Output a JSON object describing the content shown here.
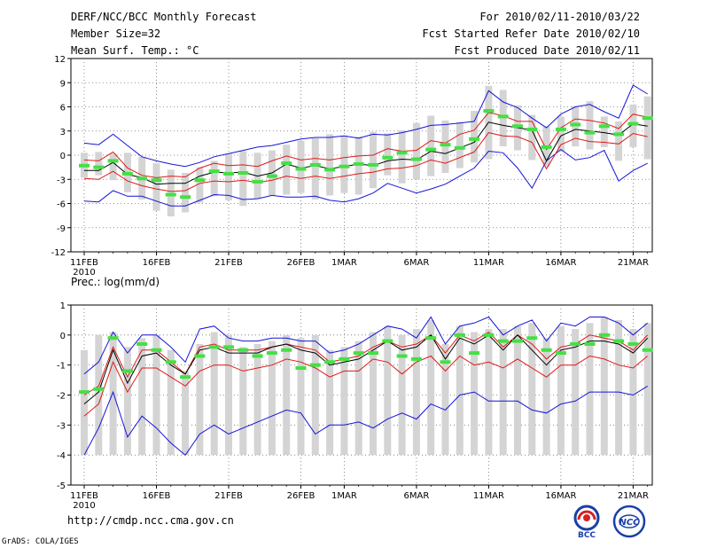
{
  "header": {
    "title": "DERF/NCC/BCC Monthly Forecast",
    "member": "Member Size=32",
    "variable": "Mean Surf. Temp.: °C",
    "range": "For 2010/02/11-2010/03/22",
    "started": "Fcst Started Refer Date 2010/02/10",
    "produced": "Fcst Produced Date 2010/02/11"
  },
  "footer": {
    "url": "http://cmdp.ncc.cma.gov.cn",
    "grads": "GrADS: COLA/IGES",
    "logo_bcc": "BCC",
    "logo_ncc": "NCC"
  },
  "colors": {
    "box": "#d4d4d4",
    "green": "#44e044",
    "black": "#000000",
    "red": "#e01818",
    "blue": "#1414d8",
    "grid": "#707070"
  },
  "chart_data": [
    {
      "type": "box-ensemble",
      "name": "temperature",
      "title": "Mean Surf. Temp.: °C",
      "ylabel": "",
      "ylim": [
        -12,
        12
      ],
      "yticks": [
        -12,
        -9,
        -6,
        -3,
        0,
        3,
        6,
        9,
        12
      ],
      "days": 40,
      "x_tick_labels": [
        {
          "day": 0,
          "label": "11FEB"
        },
        {
          "day": 5,
          "label": "16FEB"
        },
        {
          "day": 10,
          "label": "21FEB"
        },
        {
          "day": 15,
          "label": "26FEB"
        },
        {
          "day": 18,
          "label": "1MAR"
        },
        {
          "day": 23,
          "label": "6MAR"
        },
        {
          "day": 28,
          "label": "11MAR"
        },
        {
          "day": 33,
          "label": "16MAR"
        },
        {
          "day": 38,
          "label": "21MAR"
        }
      ],
      "year_label": "2010",
      "series": [
        {
          "name": "box_low",
          "values": [
            -2.8,
            -2.5,
            -3.1,
            -4.6,
            -5.5,
            -6.9,
            -7.6,
            -7.1,
            -5.9,
            -5.1,
            -5.6,
            -6.3,
            -5.4,
            -5.0,
            -4.9,
            -4.7,
            -5.5,
            -5.0,
            -4.7,
            -4.9,
            -4.1,
            -2.5,
            -3.5,
            -3.0,
            -2.6,
            -2.2,
            -1.6,
            -0.9,
            -0.5,
            1.1,
            0.6,
            -0.6,
            -1.4,
            0.5,
            1.1,
            0.7,
            1.0,
            -0.7,
            1.0,
            -0.5
          ]
        },
        {
          "name": "box_high",
          "values": [
            0.3,
            0.4,
            0.2,
            0.3,
            -0.2,
            -1.0,
            -1.8,
            -2.2,
            -1.5,
            -0.7,
            0.2,
            0.5,
            0.3,
            0.6,
            1.3,
            1.8,
            2.1,
            2.6,
            2.4,
            2.3,
            2.9,
            2.7,
            3.1,
            4.0,
            4.9,
            4.3,
            4.1,
            5.5,
            8.6,
            8.1,
            6.2,
            5.0,
            3.6,
            4.8,
            6.1,
            6.7,
            4.8,
            4.2,
            6.3,
            7.3
          ]
        },
        {
          "name": "ensemble_high",
          "values": [
            1.5,
            1.3,
            2.6,
            1.2,
            -0.2,
            -0.7,
            -1.1,
            -1.4,
            -0.9,
            -0.2,
            0.2,
            0.6,
            1.0,
            1.2,
            1.6,
            2.0,
            2.2,
            2.2,
            2.4,
            2.1,
            2.6,
            2.5,
            2.8,
            3.2,
            3.7,
            3.8,
            4.0,
            4.2,
            8.0,
            6.6,
            5.9,
            4.6,
            3.4,
            5.1,
            6.0,
            6.3,
            5.4,
            4.6,
            8.7,
            7.6
          ]
        },
        {
          "name": "upper",
          "values": [
            -0.6,
            -0.7,
            0.4,
            -1.6,
            -2.5,
            -2.8,
            -2.6,
            -2.7,
            -1.6,
            -1.0,
            -1.3,
            -1.2,
            -1.4,
            -0.7,
            -0.1,
            -0.6,
            -0.4,
            -0.6,
            -0.3,
            -0.1,
            0.0,
            0.8,
            0.5,
            0.6,
            1.8,
            1.5,
            2.6,
            3.1,
            5.3,
            4.9,
            4.2,
            4.2,
            0.7,
            3.4,
            4.5,
            4.3,
            4.0,
            3.3,
            5.1,
            4.7
          ]
        },
        {
          "name": "mean",
          "values": [
            -1.9,
            -1.9,
            -0.9,
            -2.4,
            -2.8,
            -3.6,
            -3.5,
            -3.5,
            -2.6,
            -2.1,
            -2.2,
            -2.1,
            -2.6,
            -2.2,
            -1.1,
            -1.6,
            -1.3,
            -1.7,
            -1.4,
            -1.1,
            -1.3,
            -0.7,
            -0.5,
            -0.6,
            0.5,
            0.2,
            0.9,
            1.6,
            4.1,
            3.7,
            3.4,
            3.1,
            -0.7,
            2.4,
            3.2,
            3.0,
            2.8,
            2.5,
            3.9,
            3.6
          ]
        },
        {
          "name": "lower",
          "values": [
            -2.9,
            -3.0,
            -2.0,
            -3.2,
            -3.8,
            -4.2,
            -4.5,
            -4.4,
            -3.5,
            -3.2,
            -3.3,
            -3.1,
            -3.4,
            -3.1,
            -2.6,
            -2.9,
            -2.6,
            -2.9,
            -2.6,
            -2.3,
            -2.1,
            -1.7,
            -1.6,
            -1.3,
            -0.6,
            -1.0,
            -0.3,
            0.4,
            2.8,
            2.4,
            2.3,
            1.6,
            -1.7,
            1.3,
            2.1,
            1.7,
            1.6,
            1.4,
            2.7,
            2.3
          ]
        },
        {
          "name": "ensemble_low",
          "values": [
            -5.7,
            -5.8,
            -4.4,
            -5.1,
            -5.1,
            -5.7,
            -6.3,
            -6.3,
            -5.6,
            -4.9,
            -5.0,
            -5.5,
            -5.4,
            -5.0,
            -5.2,
            -5.2,
            -5.1,
            -5.6,
            -5.8,
            -5.4,
            -4.7,
            -3.5,
            -4.1,
            -4.7,
            -4.2,
            -3.6,
            -2.6,
            -1.6,
            0.5,
            0.3,
            -1.6,
            -4.1,
            -0.7,
            0.7,
            -0.6,
            -0.3,
            0.6,
            -3.2,
            -1.9,
            -1.0
          ]
        },
        {
          "name": "median",
          "values": [
            -1.3,
            -1.5,
            -0.7,
            -2.3,
            -2.9,
            -3.1,
            -4.9,
            -5.2,
            -3.1,
            -2.0,
            -2.3,
            -2.2,
            -3.3,
            -2.6,
            -1.0,
            -1.7,
            -1.2,
            -1.8,
            -1.4,
            -1.1,
            -1.2,
            -0.3,
            0.3,
            -0.5,
            0.7,
            1.3,
            0.9,
            2.0,
            5.5,
            4.8,
            3.6,
            3.2,
            1.0,
            3.2,
            3.8,
            2.8,
            3.6,
            2.6,
            3.9,
            4.6
          ]
        }
      ]
    },
    {
      "type": "box-ensemble",
      "name": "precipitation",
      "title": "Prec.: log(mm/d)",
      "ylabel": "",
      "ylim": [
        -5,
        1
      ],
      "yticks": [
        -5,
        -4,
        -3,
        -2,
        -1,
        0,
        1
      ],
      "days": 40,
      "x_tick_labels": [
        {
          "day": 0,
          "label": "11FEB"
        },
        {
          "day": 5,
          "label": "16FEB"
        },
        {
          "day": 10,
          "label": "21FEB"
        },
        {
          "day": 15,
          "label": "26FEB"
        },
        {
          "day": 18,
          "label": "1MAR"
        },
        {
          "day": 23,
          "label": "6MAR"
        },
        {
          "day": 28,
          "label": "11MAR"
        },
        {
          "day": 33,
          "label": "16MAR"
        },
        {
          "day": 38,
          "label": "21MAR"
        }
      ],
      "year_label": "2010",
      "series": [
        {
          "name": "box_low",
          "values": [
            -4.0,
            -4.0,
            -4.0,
            -4.0,
            -4.0,
            -4.0,
            -4.0,
            -4.0,
            -4.0,
            -4.0,
            -4.0,
            -4.0,
            -4.0,
            -4.0,
            -4.0,
            -4.0,
            -4.0,
            -4.0,
            -4.0,
            -4.0,
            -4.0,
            -4.0,
            -4.0,
            -4.0,
            -4.0,
            -4.0,
            -4.0,
            -4.0,
            -4.0,
            -4.0,
            -4.0,
            -4.0,
            -4.0,
            -4.0,
            -4.0,
            -4.0,
            -4.0,
            -4.0,
            -4.0,
            -4.0
          ]
        },
        {
          "name": "box_high",
          "values": [
            -0.5,
            0.0,
            0.1,
            -0.4,
            -0.1,
            0.0,
            -0.5,
            -1.2,
            -0.3,
            0.1,
            0.0,
            -0.4,
            -0.3,
            -0.2,
            0.0,
            -0.1,
            0.0,
            -0.5,
            -0.4,
            -0.2,
            0.1,
            0.3,
            0.0,
            0.2,
            0.5,
            -0.3,
            0.3,
            0.1,
            0.2,
            0.2,
            0.3,
            0.4,
            -0.1,
            0.3,
            0.2,
            0.4,
            0.6,
            0.5,
            0.2,
            0.4
          ]
        },
        {
          "name": "ensemble_high",
          "values": [
            -1.3,
            -0.9,
            0.1,
            -0.6,
            0.0,
            0.0,
            -0.4,
            -0.9,
            0.2,
            0.3,
            -0.1,
            -0.2,
            -0.2,
            -0.1,
            -0.1,
            -0.2,
            -0.2,
            -0.6,
            -0.5,
            -0.3,
            0.0,
            0.3,
            0.2,
            -0.1,
            0.6,
            -0.3,
            0.3,
            0.4,
            0.6,
            0.0,
            0.3,
            0.5,
            -0.2,
            0.4,
            0.3,
            0.6,
            0.6,
            0.4,
            0.0,
            0.4
          ]
        },
        {
          "name": "upper",
          "values": [
            -2.0,
            -1.7,
            -0.4,
            -1.4,
            -0.5,
            -0.5,
            -0.9,
            -1.3,
            -0.4,
            -0.3,
            -0.5,
            -0.5,
            -0.5,
            -0.4,
            -0.3,
            -0.4,
            -0.5,
            -0.9,
            -0.8,
            -0.7,
            -0.4,
            -0.2,
            -0.4,
            -0.3,
            0.0,
            -0.6,
            0.0,
            -0.2,
            0.1,
            -0.4,
            0.0,
            -0.3,
            -0.8,
            -0.4,
            -0.3,
            0.0,
            -0.1,
            -0.2,
            -0.5,
            0.0
          ]
        },
        {
          "name": "mean",
          "values": [
            -2.3,
            -1.9,
            -0.5,
            -1.6,
            -0.7,
            -0.6,
            -1.0,
            -1.3,
            -0.5,
            -0.4,
            -0.6,
            -0.6,
            -0.6,
            -0.4,
            -0.3,
            -0.5,
            -0.6,
            -1.0,
            -0.9,
            -0.8,
            -0.5,
            -0.2,
            -0.5,
            -0.4,
            0.0,
            -0.8,
            -0.1,
            -0.3,
            0.0,
            -0.5,
            0.0,
            -0.5,
            -1.0,
            -0.5,
            -0.4,
            -0.2,
            -0.2,
            -0.3,
            -0.6,
            -0.1
          ]
        },
        {
          "name": "lower",
          "values": [
            -2.7,
            -2.3,
            -0.9,
            -1.9,
            -1.1,
            -1.1,
            -1.4,
            -1.7,
            -1.2,
            -1.0,
            -1.0,
            -1.2,
            -1.1,
            -1.0,
            -0.8,
            -0.9,
            -1.1,
            -1.4,
            -1.2,
            -1.2,
            -0.8,
            -0.9,
            -1.3,
            -0.9,
            -0.7,
            -1.2,
            -0.7,
            -1.0,
            -0.9,
            -1.1,
            -0.8,
            -1.1,
            -1.4,
            -1.0,
            -1.0,
            -0.7,
            -0.8,
            -1.0,
            -1.1,
            -0.7
          ]
        },
        {
          "name": "ensemble_low",
          "values": [
            -4.0,
            -3.1,
            -1.9,
            -3.4,
            -2.7,
            -3.1,
            -3.6,
            -4.0,
            -3.3,
            -3.0,
            -3.3,
            -3.1,
            -2.9,
            -2.7,
            -2.5,
            -2.6,
            -3.3,
            -3.0,
            -3.0,
            -2.9,
            -3.1,
            -2.8,
            -2.6,
            -2.8,
            -2.3,
            -2.5,
            -2.0,
            -1.9,
            -2.2,
            -2.2,
            -2.2,
            -2.5,
            -2.6,
            -2.3,
            -2.2,
            -1.9,
            -1.9,
            -1.9,
            -2.0,
            -1.7
          ]
        },
        {
          "name": "median",
          "values": [
            -1.9,
            -1.8,
            -0.1,
            -1.2,
            -0.3,
            -0.5,
            -0.9,
            -1.4,
            -0.7,
            -0.4,
            -0.4,
            -0.5,
            -0.7,
            -0.6,
            -0.5,
            -1.1,
            -1.0,
            -0.9,
            -0.8,
            -0.6,
            -0.6,
            -0.2,
            -0.7,
            -0.8,
            -0.1,
            -0.9,
            0.0,
            -0.6,
            0.0,
            -0.2,
            -0.2,
            -0.1,
            -0.5,
            -0.6,
            -0.3,
            -0.3,
            0.0,
            -0.2,
            -0.3,
            -0.5
          ]
        }
      ]
    }
  ]
}
